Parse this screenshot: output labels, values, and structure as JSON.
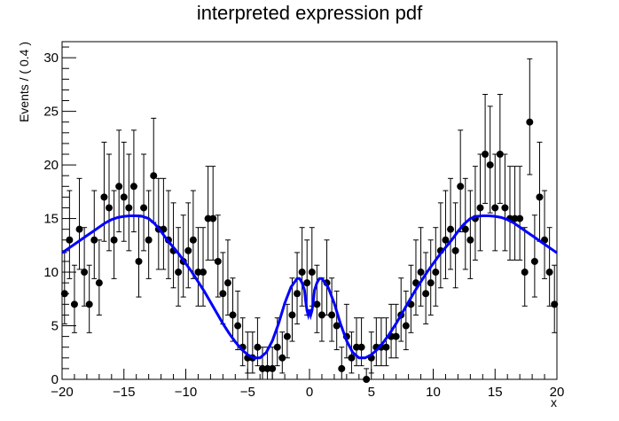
{
  "chart_data": {
    "type": "scatter",
    "title": "interpreted expression pdf",
    "xlabel": "x",
    "ylabel": "Events / ( 0.4 )",
    "xlim": [
      -20,
      20
    ],
    "ylim": [
      0,
      31.5
    ],
    "x_ticks": [
      -20,
      -15,
      -10,
      -5,
      0,
      5,
      10,
      15,
      20
    ],
    "x_tick_labels": [
      "−20",
      "−15",
      "−10",
      "−5",
      "0",
      "5",
      "10",
      "15",
      "20"
    ],
    "y_ticks": [
      0,
      5,
      10,
      15,
      20,
      25,
      30
    ],
    "y_tick_labels": [
      "0",
      "5",
      "10",
      "15",
      "20",
      "25",
      "30"
    ],
    "grid": false,
    "data_series": {
      "marker_color": "#000000",
      "error_bars": "poisson",
      "x": [
        -19.8,
        -19.4,
        -19.0,
        -18.6,
        -18.2,
        -17.8,
        -17.4,
        -17.0,
        -16.6,
        -16.2,
        -15.8,
        -15.4,
        -15.0,
        -14.6,
        -14.2,
        -13.8,
        -13.4,
        -13.0,
        -12.6,
        -12.2,
        -11.8,
        -11.4,
        -11.0,
        -10.6,
        -10.2,
        -9.8,
        -9.4,
        -9.0,
        -8.6,
        -8.2,
        -7.8,
        -7.4,
        -7.0,
        -6.6,
        -6.2,
        -5.8,
        -5.4,
        -5.0,
        -4.6,
        -4.2,
        -3.8,
        -3.4,
        -3.0,
        -2.6,
        -2.2,
        -1.8,
        -1.4,
        -1.0,
        -0.6,
        -0.2,
        0.2,
        0.6,
        1.0,
        1.4,
        1.8,
        2.2,
        2.6,
        3.0,
        3.4,
        3.8,
        4.2,
        4.6,
        5.0,
        5.4,
        5.8,
        6.2,
        6.6,
        7.0,
        7.4,
        7.8,
        8.2,
        8.6,
        9.0,
        9.4,
        9.8,
        10.2,
        10.6,
        11.0,
        11.4,
        11.8,
        12.2,
        12.6,
        13.0,
        13.4,
        13.8,
        14.2,
        14.6,
        15.0,
        15.4,
        15.8,
        16.2,
        16.6,
        17.0,
        17.4,
        17.8,
        18.2,
        18.6,
        19.0,
        19.4,
        19.8
      ],
      "y": [
        8,
        13,
        7,
        14,
        10,
        7,
        13,
        9,
        17,
        16,
        13,
        18,
        17,
        16,
        18,
        11,
        16,
        13,
        19,
        14,
        14,
        13,
        12,
        10,
        11,
        12,
        13,
        10,
        10,
        15,
        15,
        11,
        8,
        9,
        6,
        5,
        3,
        2,
        2,
        3,
        1,
        1,
        1,
        3,
        2,
        4,
        6,
        8,
        10,
        9,
        10,
        7,
        6,
        9,
        6,
        5,
        1,
        4,
        2,
        3,
        3,
        0,
        2,
        3,
        3,
        3,
        4,
        4,
        6,
        5,
        7,
        9,
        10,
        8,
        9,
        10,
        12,
        13,
        14,
        12,
        18,
        14,
        13,
        15,
        16,
        21,
        20,
        16,
        21,
        16,
        15,
        15,
        15,
        10,
        24,
        11,
        17,
        13,
        10,
        7
      ]
    },
    "pdf_series": {
      "name": "",
      "color": "#0000ff",
      "x": [
        -20,
        -19.5,
        -19,
        -18.5,
        -18,
        -17.5,
        -17,
        -16.5,
        -16,
        -15.5,
        -15,
        -14.5,
        -14,
        -13.5,
        -13,
        -12.5,
        -12,
        -11.5,
        -11,
        -10.5,
        -10,
        -9.5,
        -9,
        -8.5,
        -8,
        -7.5,
        -7,
        -6.5,
        -6,
        -5.5,
        -5,
        -4.5,
        -4,
        -3.5,
        -3,
        -2.5,
        -2,
        -1.5,
        -1,
        -0.8,
        -0.6,
        -0.4,
        -0.3,
        -0.2,
        -0.1,
        0,
        0.1,
        0.2,
        0.3,
        0.4,
        0.6,
        0.8,
        1,
        1.5,
        2,
        2.5,
        3,
        3.5,
        4,
        4.5,
        5,
        5.5,
        6,
        6.5,
        7,
        7.5,
        8,
        8.5,
        9,
        9.5,
        10,
        10.5,
        11,
        11.5,
        12,
        12.5,
        13,
        13.5,
        14,
        14.5,
        15,
        15.5,
        16,
        16.5,
        17,
        17.5,
        18,
        18.5,
        19,
        19.5,
        20
      ],
      "y": [
        11.8,
        12.2,
        12.6,
        13.0,
        13.4,
        13.8,
        14.2,
        14.6,
        14.9,
        15.1,
        15.2,
        15.25,
        15.25,
        15.2,
        15.0,
        14.5,
        13.8,
        13.0,
        12.3,
        11.6,
        10.8,
        10.0,
        9.1,
        8.2,
        7.2,
        6.2,
        5.2,
        4.3,
        3.5,
        2.8,
        2.3,
        2.0,
        2.0,
        2.5,
        3.6,
        5.2,
        7.1,
        8.6,
        9.4,
        9.4,
        9.0,
        8.3,
        7.2,
        6.4,
        6.0,
        6.5,
        6.0,
        6.4,
        7.2,
        8.3,
        9.0,
        9.4,
        9.4,
        8.6,
        7.1,
        5.2,
        3.6,
        2.5,
        2.0,
        2.0,
        2.3,
        2.8,
        3.5,
        4.3,
        5.2,
        6.2,
        7.2,
        8.2,
        9.1,
        10.0,
        10.8,
        11.6,
        12.3,
        13.0,
        13.8,
        14.5,
        15.0,
        15.2,
        15.25,
        15.25,
        15.2,
        15.1,
        14.9,
        14.6,
        14.2,
        13.8,
        13.4,
        13.0,
        12.6,
        12.2,
        11.8
      ]
    }
  }
}
